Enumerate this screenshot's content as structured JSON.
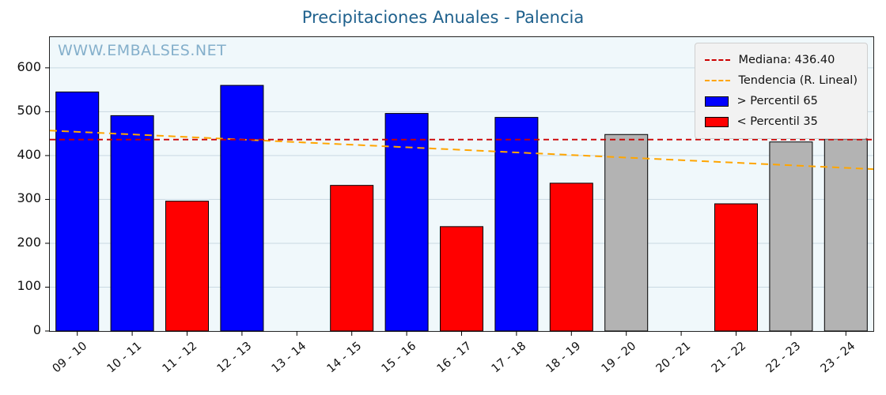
{
  "title": "Precipitaciones Anuales - Palencia",
  "watermark": "WWW.EMBALSES.NET",
  "legend": {
    "median_label": "Mediana: 436.40",
    "trend_label": "Tendencia (R. Lineal)",
    "above_label": "> Percentil 65",
    "below_label": "< Percentil 35"
  },
  "colors": {
    "above": "#0000ff",
    "below": "#ff0000",
    "mid": "#b3b3b3",
    "median_line": "#cc0000",
    "trend_line": "#ffa500",
    "title": "#1f618d",
    "grid": "#c9d9e2",
    "plot_bg": "#f0f8fb"
  },
  "chart_data": {
    "type": "bar",
    "title": "Precipitaciones Anuales - Palencia",
    "xlabel": "",
    "ylabel": "",
    "categories": [
      "09 - 10",
      "10 - 11",
      "11 - 12",
      "12 - 13",
      "13 - 14",
      "14 - 15",
      "15 - 16",
      "16 - 17",
      "17 - 18",
      "18 - 19",
      "19 - 20",
      "20 - 21",
      "21 - 22",
      "22 - 23",
      "23 - 24"
    ],
    "values": [
      545,
      491,
      296,
      560,
      null,
      332,
      496,
      238,
      487,
      337,
      448,
      null,
      290,
      431,
      438
    ],
    "classes": [
      "above",
      "above",
      "below",
      "above",
      "none",
      "below",
      "above",
      "below",
      "above",
      "below",
      "mid",
      "none",
      "below",
      "mid",
      "mid"
    ],
    "median": 436.4,
    "trend": {
      "start": 457,
      "end": 369
    },
    "ylim": [
      0,
      670
    ],
    "yticks": [
      0,
      100,
      200,
      300,
      400,
      500,
      600
    ],
    "grid": true,
    "legend_position": "upper right"
  }
}
